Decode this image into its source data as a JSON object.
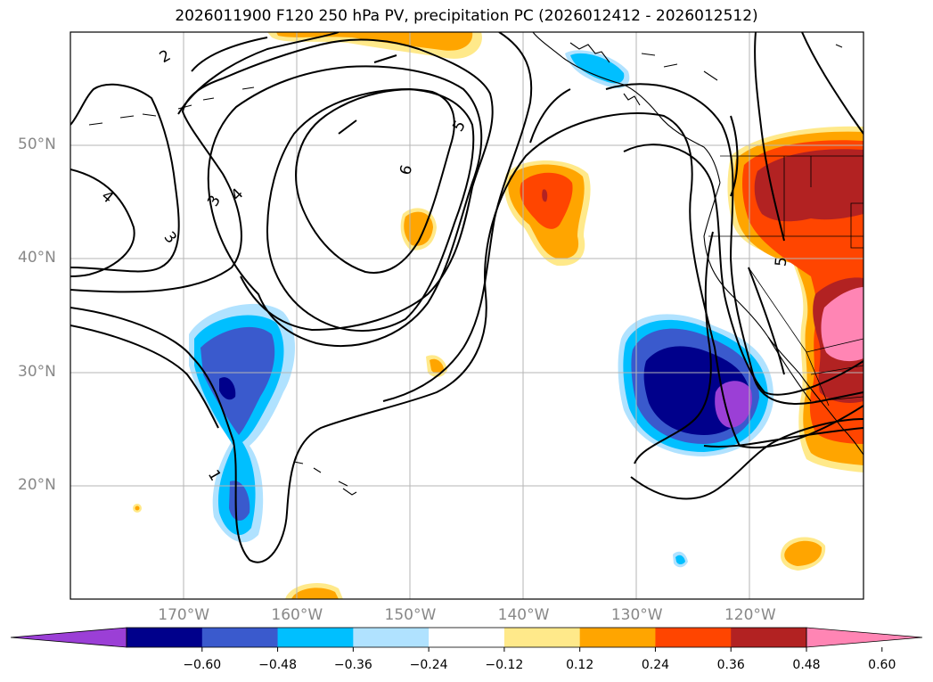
{
  "title": "2026011900 F120 250 hPa PV, precipitation PC (2026012412 - 2026012512)",
  "lat_ticks": [
    {
      "label": "50°N",
      "lat": 50
    },
    {
      "label": "40°N",
      "lat": 40
    },
    {
      "label": "30°N",
      "lat": 30
    },
    {
      "label": "20°N",
      "lat": 20
    }
  ],
  "lon_ticks": [
    {
      "label": "170°W",
      "lon": -170
    },
    {
      "label": "160°W",
      "lon": -160
    },
    {
      "label": "150°W",
      "lon": -150
    },
    {
      "label": "140°W",
      "lon": -140
    },
    {
      "label": "130°W",
      "lon": -130
    },
    {
      "label": "120°W",
      "lon": -120
    }
  ],
  "map_extent": {
    "lon_min": -180,
    "lon_max": -110,
    "lat_min": 10,
    "lat_max": 60
  },
  "contour_labels": [
    "1",
    "2",
    "3",
    "3",
    "4",
    "4",
    "5",
    "5",
    "6"
  ],
  "colorbar": {
    "labels": [
      "−0.60",
      "−0.48",
      "−0.36",
      "−0.24",
      "−0.12",
      "0.12",
      "0.24",
      "0.36",
      "0.48",
      "0.60"
    ],
    "colors": [
      "#9b3fd6",
      "#00008b",
      "#3a5acd",
      "#00bfff",
      "#b0e2ff",
      "#ffffff",
      "#ffe98a",
      "#ffa500",
      "#ff4500",
      "#b22222",
      "#ff85b4"
    ]
  }
}
